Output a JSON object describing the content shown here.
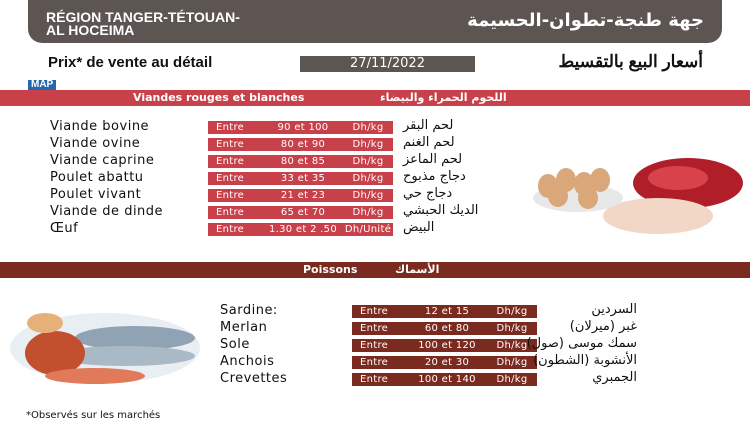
{
  "header": {
    "title_fr_line1": "RÉGION TANGER-TÉTOUAN-",
    "title_fr_line2": "AL HOCEIMA",
    "title_ar": "جهة طنجة-تطوان-الحسيمة"
  },
  "subtitle": {
    "fr": "Prix* de vente au détail",
    "date": "27/11/2022",
    "ar": "أسعار البيع بالتقسيط"
  },
  "logo": "MAP",
  "meat": {
    "band_fr": "Viandes rouges et blanches",
    "band_ar": "اللحوم الحمراء والبيضاء",
    "rows": [
      {
        "fr": "Viande bovine",
        "entre": "Entre",
        "range": "90 et 100",
        "unit": "Dh/kg",
        "ar": "لحم البقر"
      },
      {
        "fr": "Viande ovine",
        "entre": "Entre",
        "range": "80 et 90",
        "unit": "Dh/kg",
        "ar": "لحم الغنم"
      },
      {
        "fr": "Viande caprine",
        "entre": "Entre",
        "range": "80 et 85",
        "unit": "Dh/kg",
        "ar": "لحم الماعز"
      },
      {
        "fr": "Poulet abattu",
        "entre": "Entre",
        "range": "33 et 35",
        "unit": "Dh/kg",
        "ar": "دجاج مذبوح"
      },
      {
        "fr": "Poulet vivant",
        "entre": "Entre",
        "range": "21 et 23",
        "unit": "Dh/kg",
        "ar": "دجاج حي"
      },
      {
        "fr": "Viande de dinde",
        "entre": "Entre",
        "range": "65 et 70",
        "unit": "Dh/kg",
        "ar": "الديك الحبشي"
      },
      {
        "fr": "Œuf",
        "entre": "Entre",
        "range": "1.30 et 2 .50",
        "unit": "Dh/Unité",
        "ar": "البيض"
      }
    ]
  },
  "fish": {
    "band_fr": "Poissons",
    "band_ar": "الأسماك",
    "rows": [
      {
        "fr": "Sardine:",
        "entre": "Entre",
        "range": "12 et 15",
        "unit": "Dh/kg",
        "ar": "السردين"
      },
      {
        "fr": "Merlan",
        "entre": "Entre",
        "range": "60 et 80",
        "unit": "Dh/kg",
        "ar": "غبر (ميرلان)"
      },
      {
        "fr": "Sole",
        "entre": "Entre",
        "range": "100 et 120",
        "unit": "Dh/kg",
        "ar": "سمك موسى (صول)"
      },
      {
        "fr": "Anchois",
        "entre": "Entre",
        "range": "20 et 30",
        "unit": "Dh/kg",
        "ar": "الأنشوبة (الشطون)"
      },
      {
        "fr": "Crevettes",
        "entre": "Entre",
        "range": "100 et 140",
        "unit": "Dh/kg",
        "ar": "الجمبري"
      }
    ]
  },
  "footnote": "*Observés sur les marchés",
  "colors": {
    "header": "#5d5552",
    "meat": "#c8404a",
    "fish": "#7b2a1f",
    "map": "#2466b0"
  }
}
